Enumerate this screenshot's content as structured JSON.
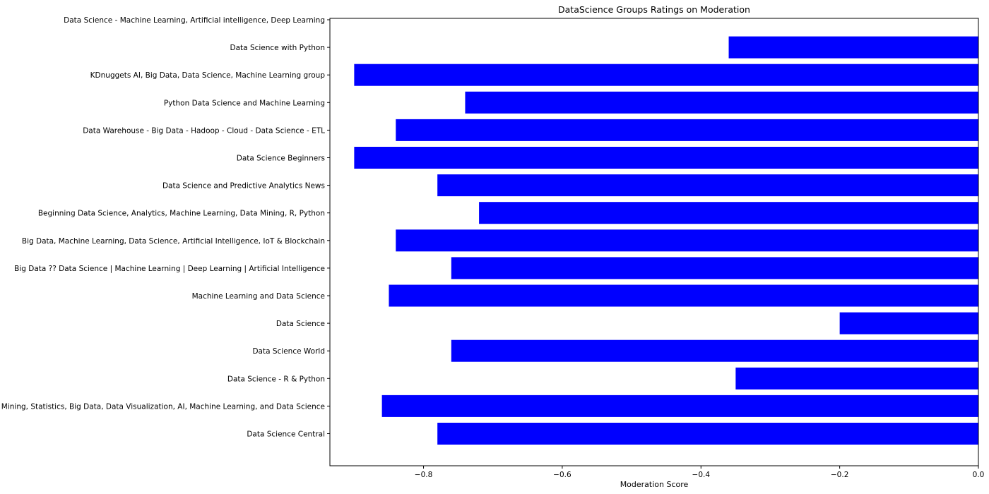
{
  "chart_data": {
    "type": "bar",
    "orientation": "horizontal",
    "title": "DataScience Groups Ratings on Moderation",
    "xlabel": "Moderation Score",
    "ylabel": "",
    "xlim": [
      -0.935,
      0.0
    ],
    "xticks": [
      -0.8,
      -0.6,
      -0.4,
      -0.2,
      0.0
    ],
    "xtick_labels": [
      "−0.8",
      "−0.6",
      "−0.4",
      "−0.2",
      "0.0"
    ],
    "grid": false,
    "legend": "none",
    "bar_color": "#0000ff",
    "categories": [
      "Data Science - Machine Learning, Artificial intelligence, Deep Learning",
      "Data Science with Python",
      "KDnuggets AI, Big Data, Data Science, Machine Learning group",
      "Python Data Science and Machine Learning",
      "Data Warehouse - Big Data - Hadoop - Cloud - Data Science - ETL",
      "Data Science Beginners",
      "Data Science and Predictive Analytics News",
      "Beginning Data Science, Analytics, Machine Learning, Data Mining, R, Python",
      "Big Data, Machine Learning, Data Science, Artificial Intelligence, IoT & Blockchain",
      "Big Data ?? Data Science | Machine Learning | Deep Learning | Artificial Intelligence",
      "Machine Learning and Data Science",
      "Data Science",
      "Data Science World",
      "Data Science - R & Python",
      "Data Mining, Statistics, Big Data, Data Visualization, AI, Machine Learning, and Data Science",
      "Data Science Central"
    ],
    "values": [
      0.0,
      -0.36,
      -0.9,
      -0.74,
      -0.84,
      -0.9,
      -0.78,
      -0.72,
      -0.84,
      -0.76,
      -0.85,
      -0.2,
      -0.76,
      -0.35,
      -0.86,
      -0.78
    ]
  }
}
